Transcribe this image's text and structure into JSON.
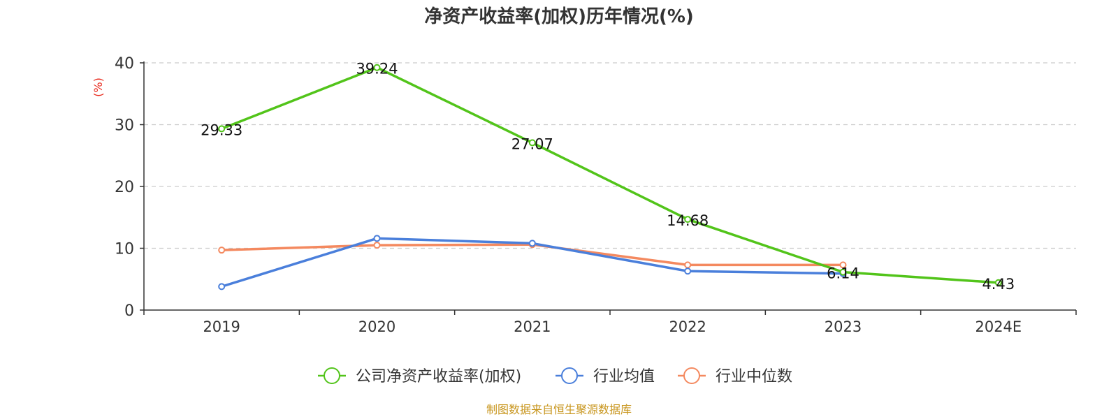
{
  "chart_data": {
    "type": "line",
    "title": "净资产收益率(加权)历年情况(%)",
    "ylabel": "(%)",
    "xlabel": "",
    "categories": [
      "2019",
      "2020",
      "2021",
      "2022",
      "2023",
      "2024E"
    ],
    "ylim": [
      0,
      40
    ],
    "yticks": [
      "0",
      "10",
      "20",
      "30",
      "40"
    ],
    "grid": true,
    "legend_position": "bottom",
    "series": [
      {
        "name": "公司净资产收益率(加权)",
        "color": "#52c41a",
        "values": [
          29.33,
          39.24,
          27.07,
          14.68,
          6.14,
          4.43
        ],
        "labels": [
          "29.33",
          "39.24",
          "27.07",
          "14.68",
          "6.14",
          "4.43"
        ]
      },
      {
        "name": "行业均值",
        "color": "#4a7fdb",
        "values": [
          3.8,
          11.6,
          10.8,
          6.3,
          5.9,
          null
        ]
      },
      {
        "name": "行业中位数",
        "color": "#f4895f",
        "values": [
          9.7,
          10.5,
          10.6,
          7.3,
          7.3,
          null
        ]
      }
    ]
  },
  "source": {
    "text": "制图数据来自恒生聚源数据库",
    "color": "#c8961e"
  },
  "ylabel_color": "#e8291c"
}
